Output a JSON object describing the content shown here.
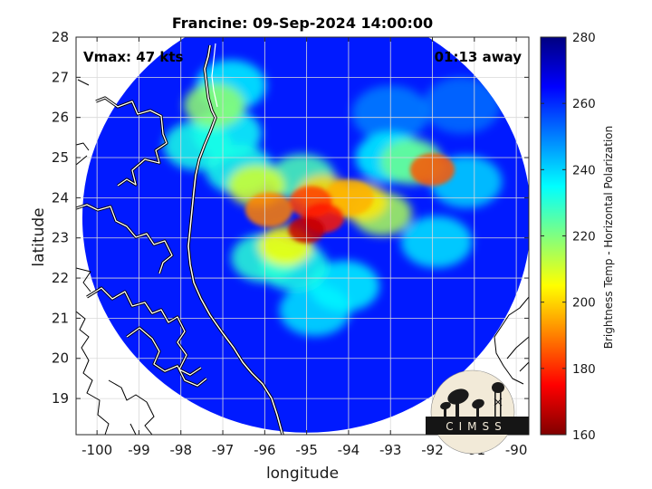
{
  "chart_data": {
    "type": "heatmap",
    "title": "Francine: 09-Sep-2024 14:00:00",
    "xlabel": "longitude",
    "ylabel": "latitude",
    "xlim": [
      -100.5,
      -89.7
    ],
    "ylim": [
      18.1,
      28
    ],
    "x_ticks": [
      -100,
      -99,
      -98,
      -97,
      -96,
      -95,
      -94,
      -93,
      -92,
      -91,
      -90
    ],
    "y_ticks": [
      19,
      20,
      21,
      22,
      23,
      24,
      25,
      26,
      27,
      28
    ],
    "grid": true,
    "annotations": {
      "vmax": "Vmax: 47 kts",
      "away": "01:13 away"
    },
    "swath": {
      "center": [
        -95.0,
        23.5
      ],
      "radius_deg": 5.35
    },
    "colorbar": {
      "label": "Brightness Temp - Horizontal Polarization",
      "range": [
        160,
        280
      ],
      "ticks": [
        160,
        180,
        200,
        220,
        240,
        260,
        280
      ],
      "colormap": [
        "#800000",
        "#ff0000",
        "#ff8000",
        "#ffff00",
        "#80ff80",
        "#00ffff",
        "#0080ff",
        "#0000ff",
        "#000080"
      ]
    },
    "background_value": 262,
    "features": [
      {
        "lon": -95.0,
        "lat": 23.2,
        "value": 168
      },
      {
        "lon": -94.6,
        "lat": 23.5,
        "value": 178
      },
      {
        "lon": -95.5,
        "lat": 22.8,
        "value": 205
      },
      {
        "lon": -94.9,
        "lat": 23.9,
        "value": 182
      },
      {
        "lon": -95.9,
        "lat": 23.7,
        "value": 190
      },
      {
        "lon": -95.3,
        "lat": 22.3,
        "value": 232
      },
      {
        "lon": -94.6,
        "lat": 24.1,
        "value": 200
      },
      {
        "lon": -94.0,
        "lat": 24.0,
        "value": 196
      },
      {
        "lon": -93.7,
        "lat": 23.9,
        "value": 202
      },
      {
        "lon": -93.2,
        "lat": 23.6,
        "value": 215
      },
      {
        "lon": -92.0,
        "lat": 24.7,
        "value": 185
      },
      {
        "lon": -92.5,
        "lat": 24.9,
        "value": 222
      },
      {
        "lon": -93.0,
        "lat": 25.0,
        "value": 236
      },
      {
        "lon": -96.2,
        "lat": 24.3,
        "value": 210
      },
      {
        "lon": -95.1,
        "lat": 24.5,
        "value": 226
      },
      {
        "lon": -96.6,
        "lat": 24.7,
        "value": 232
      },
      {
        "lon": -96.9,
        "lat": 25.6,
        "value": 234
      },
      {
        "lon": -97.2,
        "lat": 26.3,
        "value": 218
      },
      {
        "lon": -97.6,
        "lat": 25.3,
        "value": 232
      },
      {
        "lon": -96.8,
        "lat": 26.8,
        "value": 236
      },
      {
        "lon": -96.0,
        "lat": 22.5,
        "value": 230
      },
      {
        "lon": -94.8,
        "lat": 21.2,
        "value": 238
      },
      {
        "lon": -94.1,
        "lat": 21.8,
        "value": 236
      },
      {
        "lon": -91.9,
        "lat": 22.9,
        "value": 238
      },
      {
        "lon": -91.2,
        "lat": 24.4,
        "value": 240
      },
      {
        "lon": -93.0,
        "lat": 26.1,
        "value": 250
      },
      {
        "lon": -91.3,
        "lat": 26.3,
        "value": 252
      }
    ]
  },
  "logo": {
    "text": "CIMSS"
  }
}
